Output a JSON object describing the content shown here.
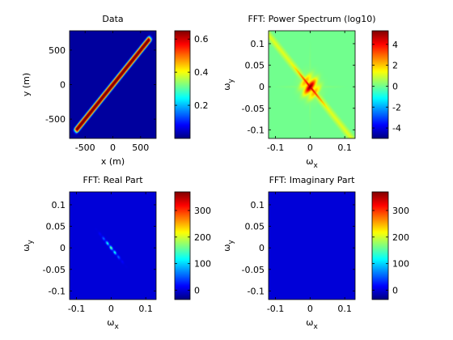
{
  "chart_data": [
    {
      "type": "heatmap",
      "title": "Data",
      "xlabel": "x (m)",
      "ylabel": "y (m)",
      "xlim": [
        -780,
        780
      ],
      "ylim": [
        -780,
        780
      ],
      "xticks": [
        -500,
        0,
        500
      ],
      "yticks": [
        -500,
        0,
        500
      ],
      "xtick_labels": [
        "-500",
        "0",
        "500"
      ],
      "ytick_labels": [
        "-500",
        "0",
        "500"
      ],
      "pattern": "diagonal-band",
      "band_extent": [
        -650,
        650
      ],
      "band_peak": 0.65,
      "colorbar": {
        "lim": [
          0,
          0.65
        ],
        "ticks": [
          0.2,
          0.4,
          0.6
        ],
        "tick_labels": [
          "0.2",
          "0.4",
          "0.6"
        ]
      },
      "colormap": "jet"
    },
    {
      "type": "heatmap",
      "title": "FFT: Power Spectrum (log10)",
      "xlabel": "ωx",
      "ylabel": "ωy",
      "xlim": [
        -0.12,
        0.13
      ],
      "ylim": [
        -0.12,
        0.13
      ],
      "xticks": [
        -0.1,
        0,
        0.1
      ],
      "yticks": [
        -0.1,
        -0.05,
        0,
        0.05,
        0.1
      ],
      "xtick_labels": [
        "-0.1",
        "0",
        "0.1"
      ],
      "ytick_labels": [
        "-0.1",
        "-0.05",
        "0",
        "0.05",
        "0.1"
      ],
      "pattern": "spectrum",
      "colorbar": {
        "lim": [
          -5,
          5.3
        ],
        "ticks": [
          -4,
          -2,
          0,
          2,
          4
        ],
        "tick_labels": [
          "-4",
          "-2",
          "0",
          "2",
          "4"
        ]
      },
      "colormap": "jet"
    },
    {
      "type": "heatmap",
      "title": "FFT: Real Part",
      "xlabel": "ωx",
      "ylabel": "ωy",
      "xlim": [
        -0.12,
        0.13
      ],
      "ylim": [
        -0.12,
        0.13
      ],
      "xticks": [
        -0.1,
        0,
        0.1
      ],
      "yticks": [
        -0.1,
        -0.05,
        0,
        0.05,
        0.1
      ],
      "xtick_labels": [
        "-0.1",
        "0",
        "0.1"
      ],
      "ytick_labels": [
        "-0.1",
        "-0.05",
        "0",
        "0.05",
        "0.1"
      ],
      "pattern": "center-streak",
      "colorbar": {
        "lim": [
          -35,
          370
        ],
        "ticks": [
          0,
          100,
          200,
          300
        ],
        "tick_labels": [
          "0",
          "100",
          "200",
          "300"
        ]
      },
      "colormap": "jet"
    },
    {
      "type": "heatmap",
      "title": "FFT: Imaginary Part",
      "xlabel": "ωx",
      "ylabel": "ωy",
      "xlim": [
        -0.12,
        0.13
      ],
      "ylim": [
        -0.12,
        0.13
      ],
      "xticks": [
        -0.1,
        0,
        0.1
      ],
      "yticks": [
        -0.1,
        -0.05,
        0,
        0.05,
        0.1
      ],
      "xtick_labels": [
        "-0.1",
        "0",
        "0.1"
      ],
      "ytick_labels": [
        "-0.1",
        "-0.05",
        "0",
        "0.05",
        "0.1"
      ],
      "pattern": "flat",
      "colorbar": {
        "lim": [
          -35,
          370
        ],
        "ticks": [
          0,
          100,
          200,
          300
        ],
        "tick_labels": [
          "0",
          "100",
          "200",
          "300"
        ]
      },
      "colormap": "jet"
    }
  ]
}
